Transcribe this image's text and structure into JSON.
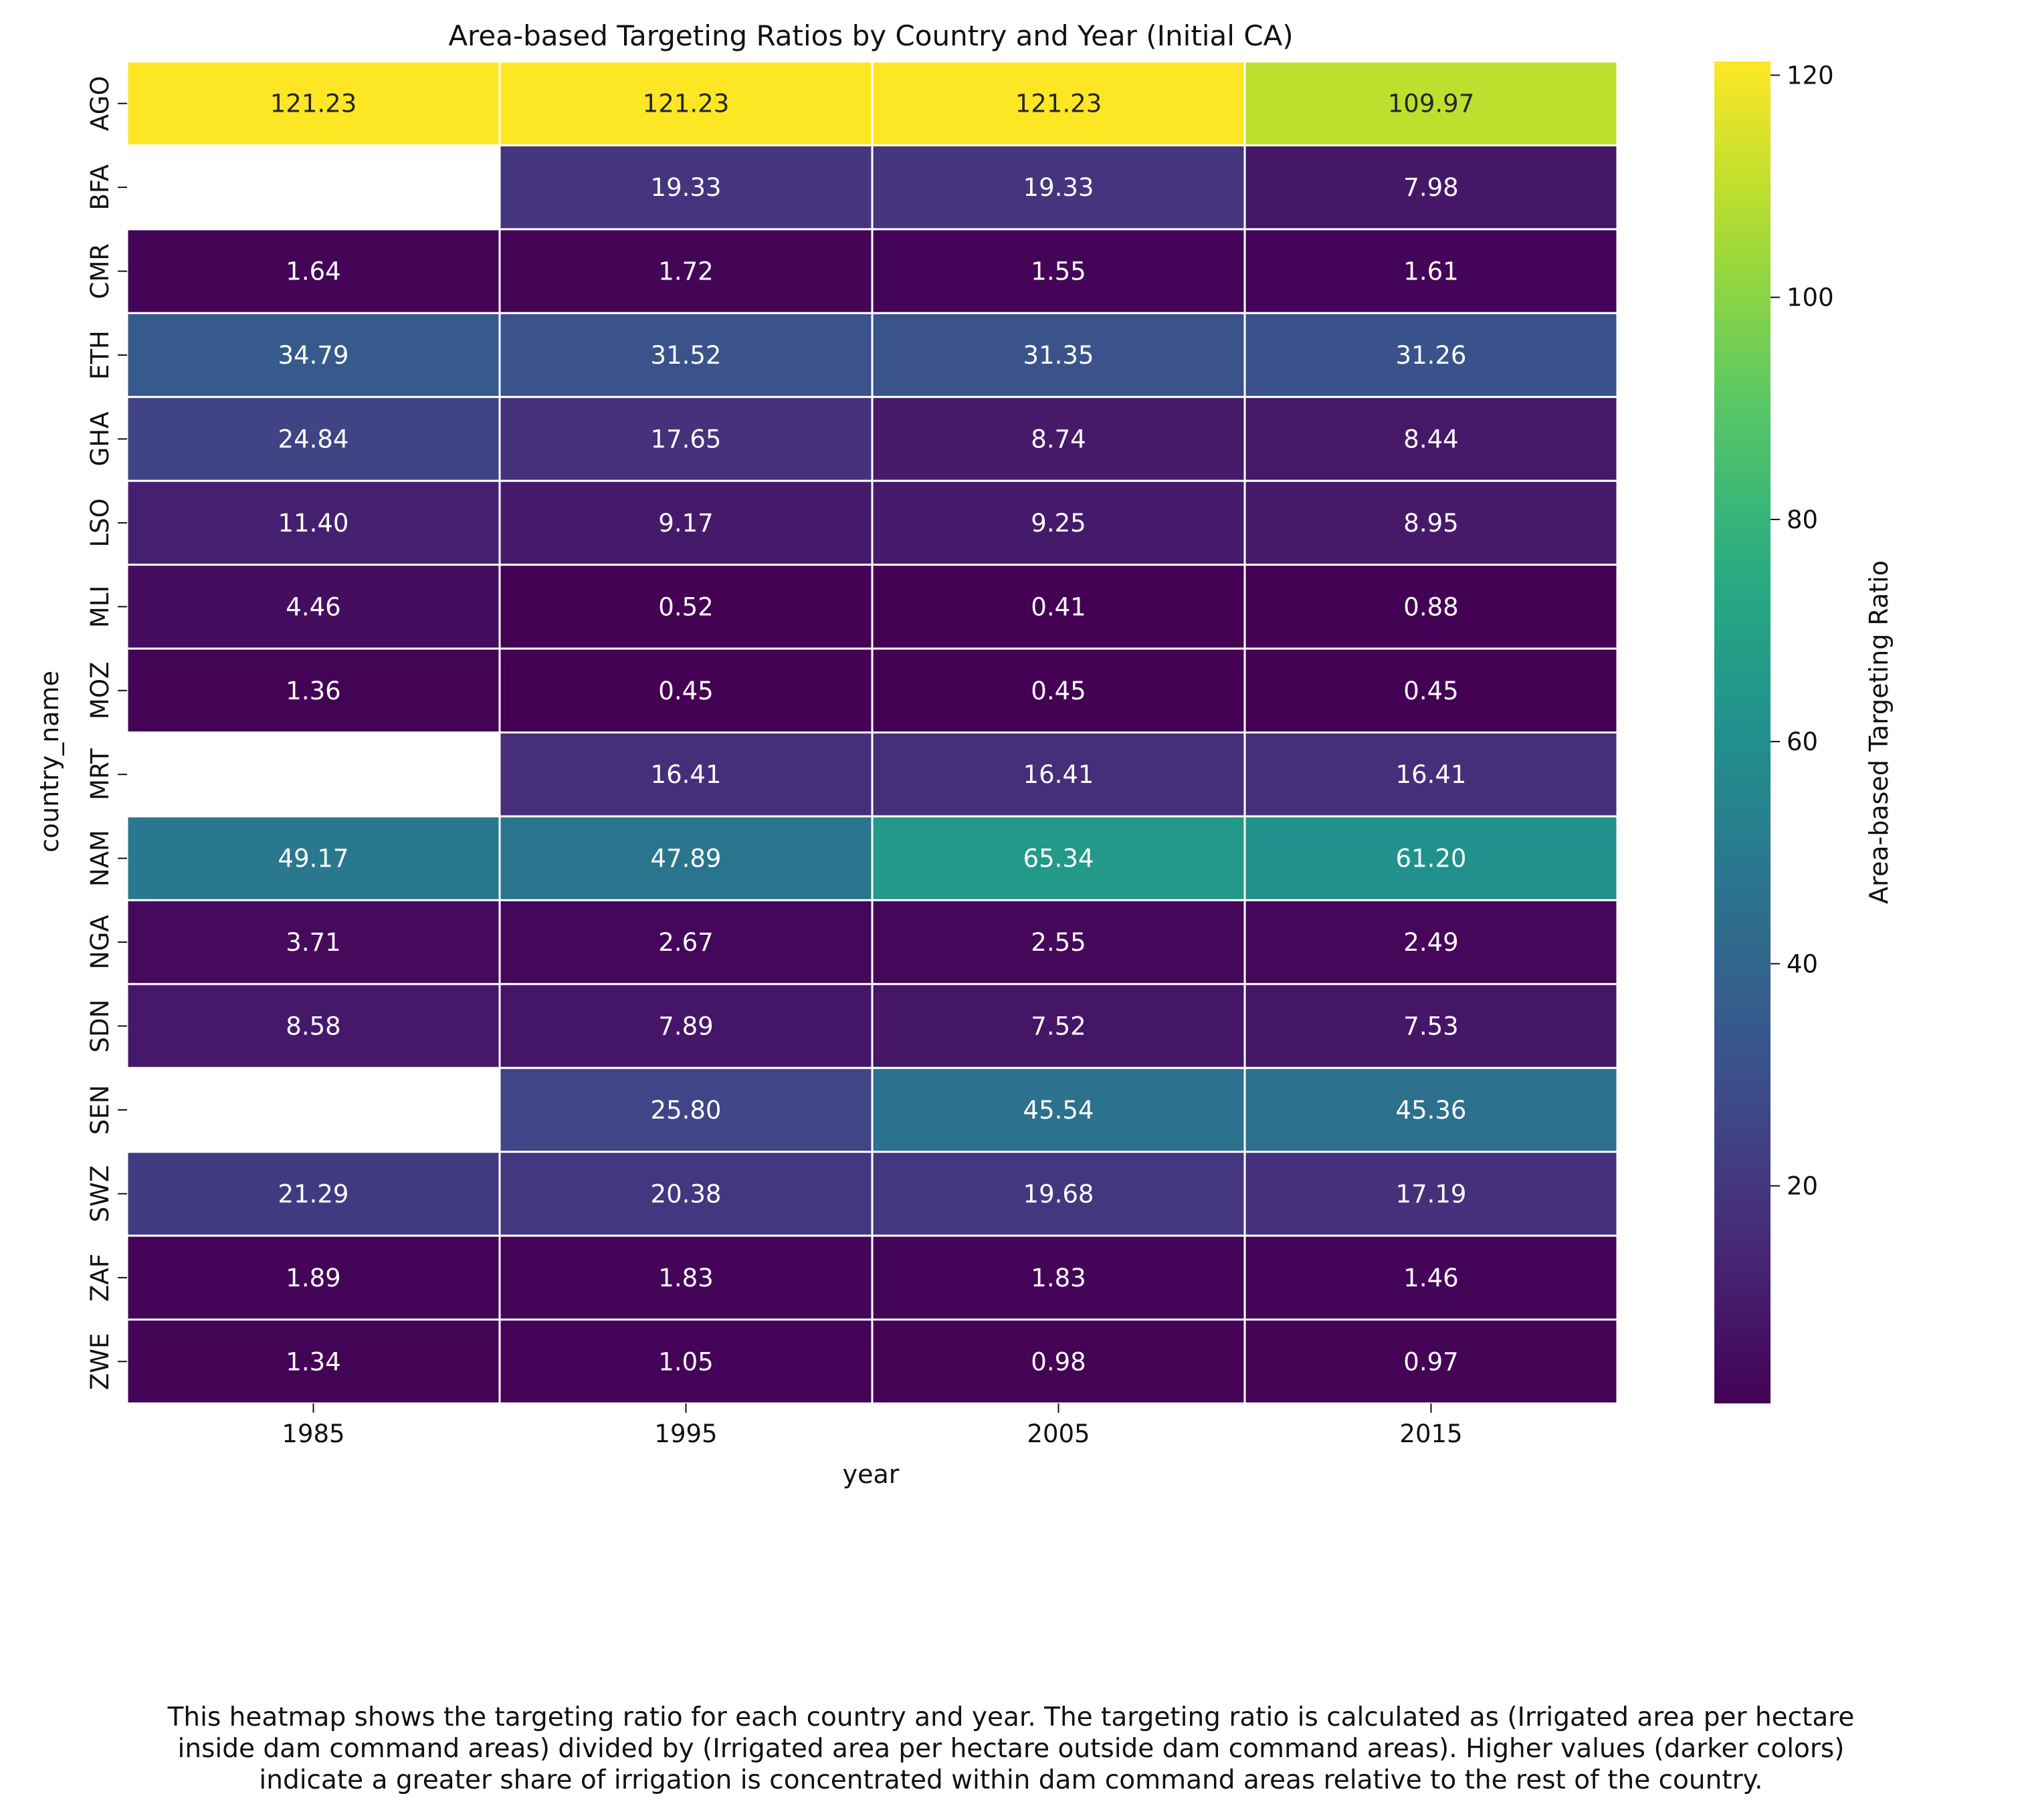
{
  "chart_data": {
    "type": "heatmap",
    "title": "Area-based Targeting Ratios by Country and Year  (Initial CA)",
    "xlabel": "year",
    "ylabel": "country_name",
    "x": [
      "1985",
      "1995",
      "2005",
      "2015"
    ],
    "y": [
      "AGO",
      "BFA",
      "CMR",
      "ETH",
      "GHA",
      "LSO",
      "MLI",
      "MOZ",
      "MRT",
      "NAM",
      "NGA",
      "SDN",
      "SEN",
      "SWZ",
      "ZAF",
      "ZWE"
    ],
    "values": [
      [
        121.23,
        121.23,
        121.23,
        109.97
      ],
      [
        null,
        19.33,
        19.33,
        7.98
      ],
      [
        1.64,
        1.72,
        1.55,
        1.61
      ],
      [
        34.79,
        31.52,
        31.35,
        31.26
      ],
      [
        24.84,
        17.65,
        8.74,
        8.44
      ],
      [
        11.4,
        9.17,
        9.25,
        8.95
      ],
      [
        4.46,
        0.52,
        0.41,
        0.88
      ],
      [
        1.36,
        0.45,
        0.45,
        0.45
      ],
      [
        null,
        16.41,
        16.41,
        16.41
      ],
      [
        49.17,
        47.89,
        65.34,
        61.2
      ],
      [
        3.71,
        2.67,
        2.55,
        2.49
      ],
      [
        8.58,
        7.89,
        7.52,
        7.53
      ],
      [
        null,
        25.8,
        45.54,
        45.36
      ],
      [
        21.29,
        20.38,
        19.68,
        17.19
      ],
      [
        1.89,
        1.83,
        1.83,
        1.46
      ],
      [
        1.34,
        1.05,
        0.98,
        0.97
      ]
    ],
    "colormap": "viridis",
    "vmin": 0.41,
    "vmax": 121.23,
    "colorbar": {
      "label": "Area-based Targeting Ratio",
      "ticks": [
        20,
        40,
        60,
        80,
        100,
        120
      ]
    },
    "value_format": "2 decimals",
    "missing_color": "#ffffff"
  },
  "caption": [
    "This heatmap shows the targeting ratio for each country and year. The targeting ratio is calculated as (Irrigated area per hectare",
    "inside dam command areas) divided by (Irrigated area per hectare outside dam command areas). Higher values (darker colors)",
    "indicate a greater share of irrigation is concentrated within dam command areas relative to the rest of the country."
  ]
}
